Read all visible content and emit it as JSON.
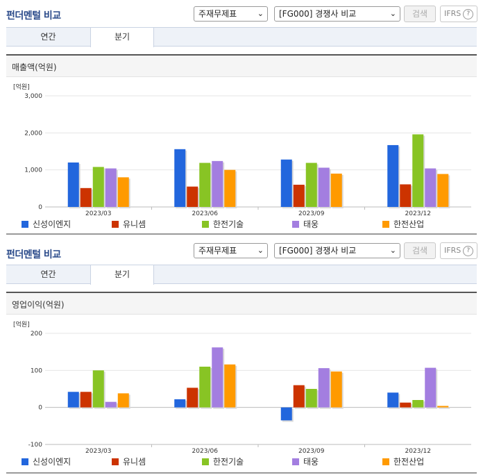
{
  "header": {
    "title": "펀더멘털 비교",
    "statement_select": "주재무제표",
    "peer_select": "[FG000] 경쟁사 비교",
    "search_label": "검색",
    "ifrs_label": "IFRS",
    "help_label": "?"
  },
  "tabs": [
    "연간",
    "분기"
  ],
  "active_tab": "분기",
  "legend": {
    "colors": [
      "#2266dd",
      "#cc3300",
      "#88c424",
      "#a37ee0",
      "#ff9a00"
    ]
  },
  "chart_data": [
    {
      "type": "bar",
      "title": "매출액(억원)",
      "unit": "[억원]",
      "categories": [
        "2023/03",
        "2023/06",
        "2023/09",
        "2023/12"
      ],
      "ylim": [
        0,
        3000
      ],
      "yticks": [
        "3,000",
        "2,000",
        "1,000",
        "0"
      ],
      "ytick_values": [
        3000,
        2000,
        1000,
        0
      ],
      "grid": true,
      "legend_position": "bottom",
      "series": [
        {
          "name": "신성이엔지",
          "values": [
            1200,
            1560,
            1280,
            1670
          ]
        },
        {
          "name": "유니셈",
          "values": [
            510,
            550,
            600,
            610
          ]
        },
        {
          "name": "한전기술",
          "values": [
            1080,
            1190,
            1190,
            1960
          ]
        },
        {
          "name": "태웅",
          "values": [
            1040,
            1240,
            1060,
            1040
          ]
        },
        {
          "name": "한전산업",
          "values": [
            800,
            1000,
            900,
            890
          ]
        }
      ]
    },
    {
      "type": "bar",
      "title": "영업이익(억원)",
      "unit": "[억원]",
      "categories": [
        "2023/03",
        "2023/06",
        "2023/09",
        "2023/12"
      ],
      "ylim": [
        -100,
        200
      ],
      "yticks": [
        "200",
        "100",
        "0",
        "-100"
      ],
      "ytick_values": [
        200,
        100,
        0,
        -100
      ],
      "grid": true,
      "legend_position": "bottom",
      "series": [
        {
          "name": "신성이엔지",
          "values": [
            42,
            22,
            -35,
            40
          ]
        },
        {
          "name": "유니셈",
          "values": [
            42,
            53,
            60,
            13
          ]
        },
        {
          "name": "한전기술",
          "values": [
            100,
            110,
            50,
            20
          ]
        },
        {
          "name": "태웅",
          "values": [
            15,
            162,
            106,
            107
          ]
        },
        {
          "name": "한전산업",
          "values": [
            38,
            116,
            97,
            4
          ]
        }
      ]
    }
  ]
}
